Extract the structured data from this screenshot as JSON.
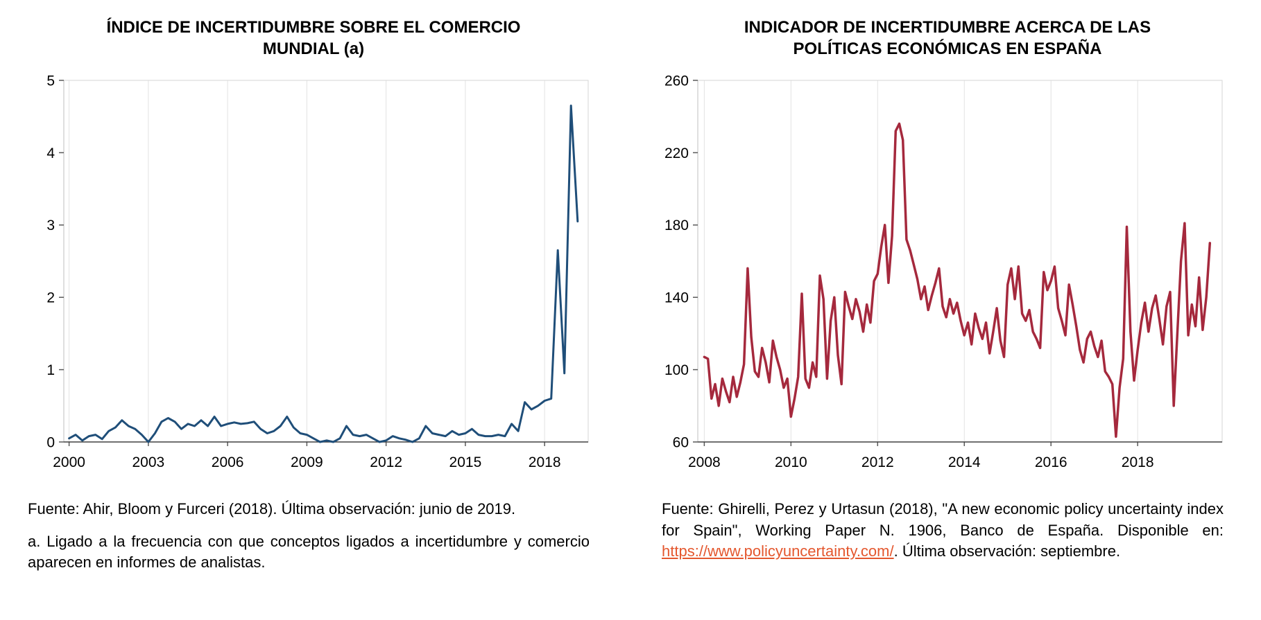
{
  "charts": {
    "left": {
      "title": "ÍNDICE DE INCERTIDUMBRE SOBRE EL COMERCIO MUNDIAL (a)"
    },
    "right": {
      "title": "INDICADOR DE INCERTIDUMBRE ACERCA DE LAS POLÍTICAS ECONÓMICAS EN ESPAÑA"
    }
  },
  "footnotes": {
    "left": {
      "fuente": "Fuente: Ahir, Bloom y Furceri (2018). Última observación: junio de 2019.",
      "note_a": "a. Ligado a la frecuencia con que conceptos ligados a incertidumbre y comercio aparecen en informes de analistas."
    },
    "right": {
      "fuente_prefix": "Fuente: Ghirelli, Perez y Urtasun (2018), \"A new economic policy uncertainty index for Spain\", Working Paper N. 1906, Banco de España. Disponible en: ",
      "link_text": "https://www.policyuncertainty.com/",
      "fuente_suffix": ". Última observación: septiembre.",
      "link_color": "#e4572e"
    }
  },
  "chart_data": [
    {
      "type": "line",
      "title": "ÍNDICE DE INCERTIDUMBRE SOBRE EL COMERCIO MUNDIAL (a)",
      "xlabel": "",
      "ylabel": "",
      "color": "#1f4e79",
      "line_width": 3,
      "ylim": [
        0,
        5
      ],
      "yticks": [
        0,
        1,
        2,
        3,
        4,
        5
      ],
      "xlim": [
        1999.8,
        2019.65
      ],
      "xticks": [
        2000,
        2003,
        2006,
        2009,
        2012,
        2015,
        2018
      ],
      "x_start": 2000,
      "x_step": 0.25,
      "last_observation": "junio de 2019",
      "values": [
        0.05,
        0.1,
        0.02,
        0.08,
        0.1,
        0.04,
        0.15,
        0.2,
        0.3,
        0.22,
        0.18,
        0.1,
        0.0,
        0.12,
        0.28,
        0.33,
        0.28,
        0.18,
        0.25,
        0.22,
        0.3,
        0.22,
        0.35,
        0.22,
        0.25,
        0.27,
        0.25,
        0.26,
        0.28,
        0.18,
        0.12,
        0.15,
        0.22,
        0.35,
        0.2,
        0.12,
        0.1,
        0.05,
        0.0,
        0.02,
        0.0,
        0.05,
        0.22,
        0.1,
        0.08,
        0.1,
        0.05,
        0.0,
        0.02,
        0.08,
        0.05,
        0.03,
        0.0,
        0.05,
        0.22,
        0.12,
        0.1,
        0.08,
        0.15,
        0.1,
        0.12,
        0.18,
        0.1,
        0.08,
        0.08,
        0.1,
        0.08,
        0.25,
        0.15,
        0.55,
        0.45,
        0.5,
        0.57,
        0.6,
        2.65,
        0.95,
        4.65,
        3.05
      ]
    },
    {
      "type": "line",
      "title": "INDICADOR DE INCERTIDUMBRE ACERCA DE LAS POLÍTICAS ECONÓMICAS EN ESPAÑA",
      "xlabel": "",
      "ylabel": "",
      "color": "#a5293d",
      "line_width": 3.5,
      "ylim": [
        60,
        260
      ],
      "yticks": [
        60,
        100,
        140,
        180,
        220,
        260
      ],
      "xlim": [
        2007.85,
        2019.95
      ],
      "xticks": [
        2008,
        2010,
        2012,
        2014,
        2016,
        2018
      ],
      "x_start": 2008,
      "x_step": 0.0833333,
      "last_observation": "septiembre",
      "values": [
        107,
        106,
        84,
        92,
        80,
        95,
        88,
        82,
        96,
        85,
        93,
        103,
        156,
        118,
        99,
        96,
        112,
        104,
        93,
        116,
        107,
        100,
        90,
        95,
        74,
        84,
        96,
        142,
        95,
        90,
        104,
        96,
        152,
        139,
        95,
        127,
        140,
        108,
        92,
        143,
        135,
        128,
        139,
        132,
        121,
        136,
        126,
        149,
        153,
        168,
        180,
        148,
        174,
        232,
        236,
        227,
        172,
        166,
        158,
        150,
        139,
        146,
        133,
        141,
        148,
        156,
        135,
        129,
        139,
        131,
        137,
        127,
        119,
        126,
        114,
        131,
        123,
        117,
        126,
        109,
        121,
        134,
        116,
        107,
        147,
        156,
        139,
        157,
        131,
        127,
        133,
        121,
        117,
        112,
        154,
        144,
        149,
        157,
        134,
        127,
        119,
        147,
        136,
        124,
        111,
        104,
        117,
        121,
        113,
        107,
        116,
        99,
        96,
        92,
        63,
        90,
        106,
        179,
        121,
        94,
        111,
        126,
        137,
        121,
        134,
        141,
        128,
        114,
        135,
        143,
        80,
        120,
        160,
        181,
        119,
        136,
        124,
        151,
        122,
        140,
        170
      ]
    }
  ]
}
